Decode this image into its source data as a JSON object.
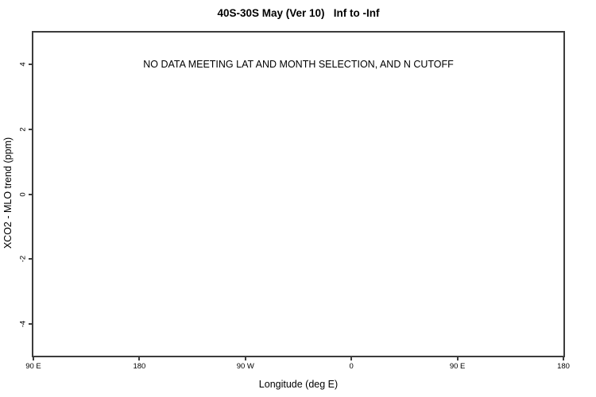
{
  "chart_data": {
    "type": "scatter",
    "title": "40S-30S May (Ver 10)   Inf to -Inf",
    "xlabel": "Longitude (deg E)",
    "ylabel": "XCO2 - MLO trend (ppm)",
    "annotation": {
      "text": "NO DATA MEETING LAT AND MONTH SELECTION, AND N CUTOFF",
      "y_value": 4
    },
    "series": [],
    "grid": false,
    "legend": null,
    "xlim": [
      90,
      540
    ],
    "ylim": [
      -4.97,
      4.97
    ],
    "x_ticks": [
      {
        "value": 90,
        "label": "90 E"
      },
      {
        "value": 180,
        "label": "180"
      },
      {
        "value": 270,
        "label": "90 W"
      },
      {
        "value": 360,
        "label": "0"
      },
      {
        "value": 450,
        "label": "90 E"
      },
      {
        "value": 540,
        "label": "180"
      }
    ],
    "y_ticks": [
      {
        "value": -4,
        "label": "-4"
      },
      {
        "value": -2,
        "label": "-2"
      },
      {
        "value": 0,
        "label": "0"
      },
      {
        "value": 2,
        "label": "2"
      },
      {
        "value": 4,
        "label": "4"
      }
    ],
    "colors": {
      "background": "#ffffff",
      "axis": "#3c3c3c",
      "text": "#000000"
    }
  }
}
